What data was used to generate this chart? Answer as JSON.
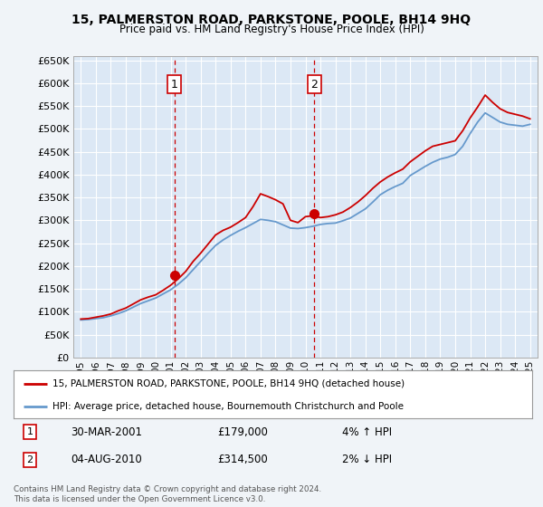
{
  "title": "15, PALMERSTON ROAD, PARKSTONE, POOLE, BH14 9HQ",
  "subtitle": "Price paid vs. HM Land Registry's House Price Index (HPI)",
  "background_color": "#f0f4f8",
  "plot_bg_color": "#dce8f5",
  "ylim": [
    0,
    660000
  ],
  "yticks": [
    0,
    50000,
    100000,
    150000,
    200000,
    250000,
    300000,
    350000,
    400000,
    450000,
    500000,
    550000,
    600000,
    650000
  ],
  "xlim_start": 1994.5,
  "xlim_end": 2025.5,
  "xticks": [
    1995,
    1996,
    1997,
    1998,
    1999,
    2000,
    2001,
    2002,
    2003,
    2004,
    2005,
    2006,
    2007,
    2008,
    2009,
    2010,
    2011,
    2012,
    2013,
    2014,
    2015,
    2016,
    2017,
    2018,
    2019,
    2020,
    2021,
    2022,
    2023,
    2024,
    2025
  ],
  "hpi_years": [
    1995,
    1995.5,
    1996,
    1996.5,
    1997,
    1997.5,
    1998,
    1998.5,
    1999,
    1999.5,
    2000,
    2000.5,
    2001,
    2001.5,
    2002,
    2002.5,
    2003,
    2003.5,
    2004,
    2004.5,
    2005,
    2005.5,
    2006,
    2006.5,
    2007,
    2007.5,
    2008,
    2008.5,
    2009,
    2009.5,
    2010,
    2010.5,
    2011,
    2011.5,
    2012,
    2012.5,
    2013,
    2013.5,
    2014,
    2014.5,
    2015,
    2015.5,
    2016,
    2016.5,
    2017,
    2017.5,
    2018,
    2018.5,
    2019,
    2019.5,
    2020,
    2020.5,
    2021,
    2021.5,
    2022,
    2022.5,
    2023,
    2023.5,
    2024,
    2024.5,
    2025
  ],
  "hpi_values": [
    82000,
    83000,
    85000,
    87000,
    91000,
    96000,
    102000,
    110000,
    118000,
    124000,
    130000,
    139000,
    148000,
    160000,
    174000,
    192000,
    210000,
    228000,
    245000,
    257000,
    267000,
    276000,
    284000,
    293000,
    302000,
    300000,
    297000,
    290000,
    283000,
    282000,
    284000,
    287000,
    291000,
    293000,
    294000,
    299000,
    305000,
    315000,
    325000,
    340000,
    356000,
    366000,
    374000,
    381000,
    398000,
    408000,
    418000,
    427000,
    434000,
    438000,
    444000,
    462000,
    490000,
    515000,
    535000,
    525000,
    515000,
    510000,
    508000,
    506000,
    510000
  ],
  "red_years": [
    1995,
    1995.5,
    1996,
    1996.5,
    1997,
    1997.5,
    1998,
    1998.5,
    1999,
    1999.5,
    2000,
    2000.5,
    2001,
    2001.5,
    2002,
    2002.5,
    2003,
    2003.5,
    2004,
    2004.5,
    2005,
    2005.5,
    2006,
    2006.5,
    2007,
    2007.5,
    2008,
    2008.5,
    2009,
    2009.5,
    2010,
    2010.5,
    2011,
    2011.5,
    2012,
    2012.5,
    2013,
    2013.5,
    2014,
    2014.5,
    2015,
    2015.5,
    2016,
    2016.5,
    2017,
    2017.5,
    2018,
    2018.5,
    2019,
    2019.5,
    2020,
    2020.5,
    2021,
    2021.5,
    2022,
    2022.5,
    2023,
    2023.5,
    2024,
    2024.5,
    2025
  ],
  "red_values": [
    84000,
    85000,
    88000,
    91000,
    95000,
    102000,
    108000,
    117000,
    126000,
    132000,
    137000,
    147000,
    158000,
    172000,
    188000,
    210000,
    228000,
    248000,
    268000,
    278000,
    285000,
    295000,
    306000,
    330000,
    358000,
    352000,
    345000,
    336000,
    300000,
    295000,
    308000,
    310000,
    306000,
    308000,
    312000,
    318000,
    328000,
    340000,
    354000,
    370000,
    384000,
    395000,
    404000,
    412000,
    428000,
    440000,
    452000,
    462000,
    466000,
    470000,
    474000,
    496000,
    524000,
    548000,
    574000,
    558000,
    544000,
    536000,
    532000,
    528000,
    522000
  ],
  "sale1_x": 2001.24,
  "sale1_y": 179000,
  "sale2_x": 2010.59,
  "sale2_y": 314500,
  "vline1_x": 2001.24,
  "vline2_x": 2010.59,
  "red_line_color": "#cc0000",
  "blue_line_color": "#6699cc",
  "vline_color": "#cc0000",
  "sale_marker_color": "#cc0000",
  "legend_label_red": "15, PALMERSTON ROAD, PARKSTONE, POOLE, BH14 9HQ (detached house)",
  "legend_label_blue": "HPI: Average price, detached house, Bournemouth Christchurch and Poole",
  "annotation1_label": "1",
  "annotation2_label": "2",
  "annot1_date": "30-MAR-2001",
  "annot1_price": "£179,000",
  "annot1_hpi": "4% ↑ HPI",
  "annot2_date": "04-AUG-2010",
  "annot2_price": "£314,500",
  "annot2_hpi": "2% ↓ HPI",
  "footer": "Contains HM Land Registry data © Crown copyright and database right 2024.\nThis data is licensed under the Open Government Licence v3.0."
}
